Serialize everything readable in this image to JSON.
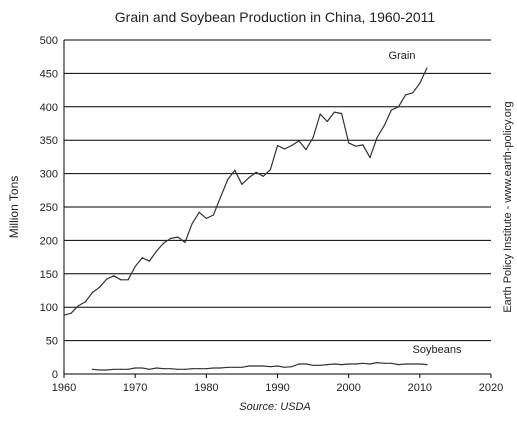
{
  "chart_data": {
    "type": "line",
    "title": "Grain and Soybean Production in China, 1960-2011",
    "xlabel": "",
    "ylabel": "Million Tons",
    "xlim": [
      1960,
      2020
    ],
    "ylim": [
      0,
      500
    ],
    "xticks": [
      "1960",
      "1970",
      "1980",
      "1990",
      "2000",
      "2010",
      "2020"
    ],
    "yticks": [
      "0",
      "50",
      "100",
      "150",
      "200",
      "250",
      "300",
      "350",
      "400",
      "450",
      "500"
    ],
    "grid": "horizontal",
    "series": [
      {
        "name": "Grain",
        "color": "#333333",
        "x": [
          1960,
          1961,
          1962,
          1963,
          1964,
          1965,
          1966,
          1967,
          1968,
          1969,
          1970,
          1971,
          1972,
          1973,
          1974,
          1975,
          1976,
          1977,
          1978,
          1979,
          1980,
          1981,
          1982,
          1983,
          1984,
          1985,
          1986,
          1987,
          1988,
          1989,
          1990,
          1991,
          1992,
          1993,
          1994,
          1995,
          1996,
          1997,
          1998,
          1999,
          2000,
          2001,
          2002,
          2003,
          2004,
          2005,
          2006,
          2007,
          2008,
          2009,
          2010,
          2011
        ],
        "y": [
          88,
          91,
          102,
          108,
          122,
          130,
          142,
          147,
          141,
          141,
          161,
          174,
          169,
          184,
          196,
          203,
          205,
          197,
          225,
          242,
          233,
          238,
          265,
          291,
          305,
          284,
          294,
          302,
          296,
          306,
          342,
          337,
          342,
          349,
          336,
          354,
          389,
          378,
          392,
          390,
          346,
          341,
          343,
          324,
          354,
          372,
          395,
          400,
          418,
          421,
          435,
          458
        ]
      },
      {
        "name": "Soybeans",
        "color": "#333333",
        "x": [
          1964,
          1965,
          1966,
          1967,
          1968,
          1969,
          1970,
          1971,
          1972,
          1973,
          1974,
          1975,
          1976,
          1977,
          1978,
          1979,
          1980,
          1981,
          1982,
          1983,
          1984,
          1985,
          1986,
          1987,
          1988,
          1989,
          1990,
          1991,
          1992,
          1993,
          1994,
          1995,
          1996,
          1997,
          1998,
          1999,
          2000,
          2001,
          2002,
          2003,
          2004,
          2005,
          2006,
          2007,
          2008,
          2009,
          2010,
          2011
        ],
        "y": [
          7,
          6,
          6,
          7,
          7,
          7,
          9,
          9,
          7,
          9,
          8,
          8,
          7,
          7,
          8,
          8,
          8,
          9,
          9,
          10,
          10,
          10,
          12,
          12,
          12,
          11,
          12,
          10,
          11,
          15,
          15,
          13,
          13,
          14,
          15,
          14,
          15,
          15,
          16,
          15,
          17,
          16,
          16,
          14,
          15,
          15,
          15,
          14
        ]
      }
    ],
    "annotations": {
      "source": "Source: USDA",
      "side": "Earth Policy Institute - www.earth-policy.org"
    }
  }
}
